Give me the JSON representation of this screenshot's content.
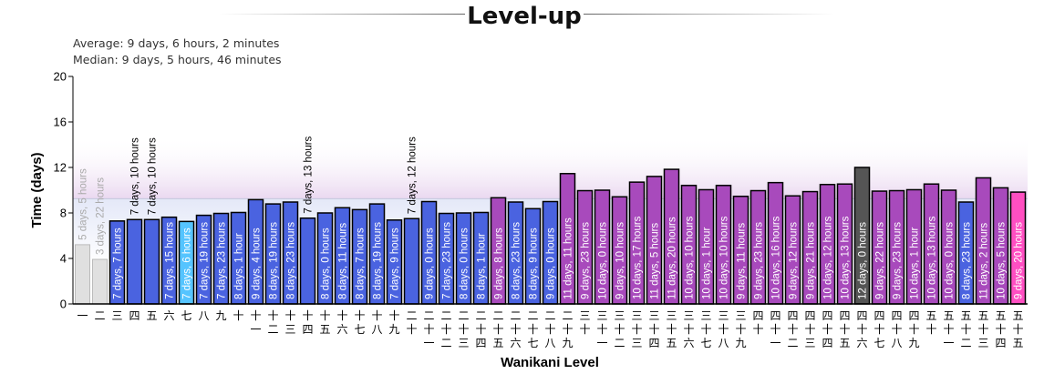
{
  "chart_data": {
    "type": "bar",
    "title": "Level-up",
    "stats": {
      "average": "Average: 9 days, 6 hours, 2 minutes",
      "median": "Median: 9 days, 5 hours, 46 minutes"
    },
    "average_days": 9.2514,
    "xlabel": "Wanikani Level",
    "ylabel": "Time (days)",
    "ylim": [
      0,
      20
    ],
    "yticks": [
      0,
      4,
      8,
      12,
      16,
      20
    ],
    "colors": {
      "reset": "#e0e0e0",
      "normal": "#4a63e0",
      "fast": "#55c4ff",
      "slow": "#a84abc",
      "slowest": "#555555",
      "current": "#ff4fc2"
    },
    "categories": [
      "一",
      "二",
      "三",
      "四",
      "五",
      "六",
      "七",
      "八",
      "九",
      "十",
      "十一",
      "十二",
      "十三",
      "十四",
      "十五",
      "十六",
      "十七",
      "十八",
      "十九",
      "二十",
      "二十一",
      "二十二",
      "二十三",
      "二十四",
      "二十五",
      "二十六",
      "二十七",
      "二十八",
      "二十九",
      "三十",
      "三十一",
      "三十二",
      "三十三",
      "三十四",
      "三十五",
      "三十六",
      "三十七",
      "三十八",
      "三十九",
      "四十",
      "四十一",
      "四十二",
      "四十三",
      "四十四",
      "四十五",
      "四十六",
      "四十七",
      "四十八",
      "四十九",
      "五十",
      "五十一",
      "五十二",
      "五十三",
      "五十四",
      "五十五"
    ],
    "bars": [
      {
        "days": 5,
        "hours": 5,
        "label": "5 days, 5 hours",
        "kind": "reset"
      },
      {
        "days": 3,
        "hours": 22,
        "label": "3 days, 22 hours",
        "kind": "reset"
      },
      {
        "days": 7,
        "hours": 7,
        "label": "7 days, 7 hours",
        "kind": "normal"
      },
      {
        "days": 7,
        "hours": 10,
        "label": "7 days, 10 hours",
        "kind": "normal"
      },
      {
        "days": 7,
        "hours": 10,
        "label": "7 days, 10 hours",
        "kind": "normal"
      },
      {
        "days": 7,
        "hours": 15,
        "label": "7 days, 15 hours",
        "kind": "normal"
      },
      {
        "days": 7,
        "hours": 6,
        "label": "7 days, 6 hours",
        "kind": "fast"
      },
      {
        "days": 7,
        "hours": 19,
        "label": "7 days, 19 hours",
        "kind": "normal"
      },
      {
        "days": 7,
        "hours": 23,
        "label": "7 days, 23 hours",
        "kind": "normal"
      },
      {
        "days": 8,
        "hours": 1,
        "label": "8 days, 1 hour",
        "kind": "normal"
      },
      {
        "days": 9,
        "hours": 4,
        "label": "9 days, 4 hours",
        "kind": "normal"
      },
      {
        "days": 8,
        "hours": 19,
        "label": "8 days, 19 hours",
        "kind": "normal"
      },
      {
        "days": 8,
        "hours": 23,
        "label": "8 days, 23 hours",
        "kind": "normal"
      },
      {
        "days": 7,
        "hours": 13,
        "label": "7 days, 13 hours",
        "kind": "normal"
      },
      {
        "days": 8,
        "hours": 0,
        "label": "8 days, 0 hours",
        "kind": "normal"
      },
      {
        "days": 8,
        "hours": 11,
        "label": "8 days, 11 hours",
        "kind": "normal"
      },
      {
        "days": 8,
        "hours": 7,
        "label": "8 days, 7 hours",
        "kind": "normal"
      },
      {
        "days": 8,
        "hours": 19,
        "label": "8 days, 19 hours",
        "kind": "normal"
      },
      {
        "days": 7,
        "hours": 9,
        "label": "7 days, 9 hours",
        "kind": "normal"
      },
      {
        "days": 7,
        "hours": 12,
        "label": "7 days, 12 hours",
        "kind": "normal"
      },
      {
        "days": 9,
        "hours": 0,
        "label": "9 days, 0 hours",
        "kind": "normal"
      },
      {
        "days": 7,
        "hours": 23,
        "label": "7 days, 23 hours",
        "kind": "normal"
      },
      {
        "days": 8,
        "hours": 0,
        "label": "8 days, 0 hours",
        "kind": "normal"
      },
      {
        "days": 8,
        "hours": 1,
        "label": "8 days, 1 hour",
        "kind": "normal"
      },
      {
        "days": 9,
        "hours": 8,
        "label": "9 days, 8 hours",
        "kind": "slow"
      },
      {
        "days": 8,
        "hours": 23,
        "label": "8 days, 23 hours",
        "kind": "normal"
      },
      {
        "days": 8,
        "hours": 9,
        "label": "8 days, 9 hours",
        "kind": "normal"
      },
      {
        "days": 9,
        "hours": 0,
        "label": "9 days, 0 hours",
        "kind": "normal"
      },
      {
        "days": 11,
        "hours": 11,
        "label": "11 days, 11 hours",
        "kind": "slow"
      },
      {
        "days": 9,
        "hours": 23,
        "label": "9 days, 23 hours",
        "kind": "slow"
      },
      {
        "days": 10,
        "hours": 0,
        "label": "10 days, 0 hours",
        "kind": "slow"
      },
      {
        "days": 9,
        "hours": 10,
        "label": "9 days, 10 hours",
        "kind": "slow"
      },
      {
        "days": 10,
        "hours": 17,
        "label": "10 days, 17 hours",
        "kind": "slow"
      },
      {
        "days": 11,
        "hours": 5,
        "label": "11 days, 5 hours",
        "kind": "slow"
      },
      {
        "days": 11,
        "hours": 20,
        "label": "11 days, 20 hours",
        "kind": "slow"
      },
      {
        "days": 10,
        "hours": 10,
        "label": "10 days, 10 hours",
        "kind": "slow"
      },
      {
        "days": 10,
        "hours": 1,
        "label": "10 days, 1 hour",
        "kind": "slow"
      },
      {
        "days": 10,
        "hours": 10,
        "label": "10 days, 10 hours",
        "kind": "slow"
      },
      {
        "days": 9,
        "hours": 11,
        "label": "9 days, 11 hours",
        "kind": "slow"
      },
      {
        "days": 9,
        "hours": 23,
        "label": "9 days, 23 hours",
        "kind": "slow"
      },
      {
        "days": 10,
        "hours": 16,
        "label": "10 days, 16 hours",
        "kind": "slow"
      },
      {
        "days": 9,
        "hours": 12,
        "label": "9 days, 12 hours",
        "kind": "slow"
      },
      {
        "days": 9,
        "hours": 21,
        "label": "9 days, 21 hours",
        "kind": "slow"
      },
      {
        "days": 10,
        "hours": 12,
        "label": "10 days, 12 hours",
        "kind": "slow"
      },
      {
        "days": 10,
        "hours": 13,
        "label": "10 days, 13 hours",
        "kind": "slow"
      },
      {
        "days": 12,
        "hours": 0,
        "label": "12 days, 0 hours",
        "kind": "slowest"
      },
      {
        "days": 9,
        "hours": 22,
        "label": "9 days, 22 hours",
        "kind": "slow"
      },
      {
        "days": 9,
        "hours": 23,
        "label": "9 days, 23 hours",
        "kind": "slow"
      },
      {
        "days": 10,
        "hours": 1,
        "label": "10 days, 1 hour",
        "kind": "slow"
      },
      {
        "days": 10,
        "hours": 13,
        "label": "10 days, 13 hours",
        "kind": "slow"
      },
      {
        "days": 10,
        "hours": 0,
        "label": "10 days, 0 hours",
        "kind": "slow"
      },
      {
        "days": 8,
        "hours": 23,
        "label": "8 days, 23 hours",
        "kind": "normal"
      },
      {
        "days": 11,
        "hours": 2,
        "label": "11 days, 2 hours",
        "kind": "slow"
      },
      {
        "days": 10,
        "hours": 5,
        "label": "10 days, 5 hours",
        "kind": "slow"
      },
      {
        "days": 9,
        "hours": 20,
        "label": "9 days, 20 hours",
        "kind": "current"
      }
    ]
  }
}
